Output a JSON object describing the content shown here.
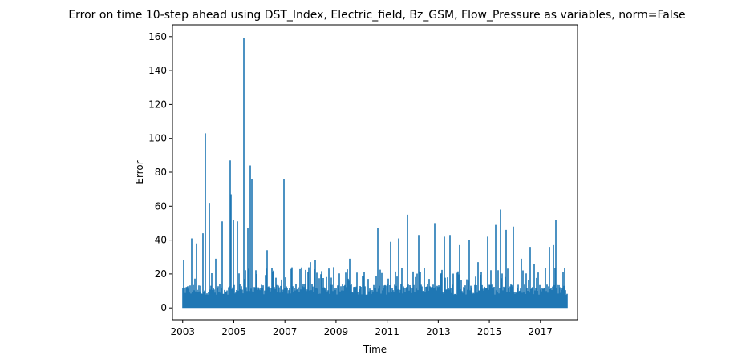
{
  "chart_data": {
    "type": "line",
    "title": "Error on time 10-step ahead using DST_Index, Electric_field, Bz_GSM, Flow_Pressure as variables, norm=False",
    "xlabel": "Time",
    "ylabel": "Error",
    "xlim": [
      2002.6,
      2018.45
    ],
    "ylim": [
      -7,
      167
    ],
    "x_ticks": [
      2003,
      2005,
      2007,
      2009,
      2011,
      2013,
      2015,
      2017
    ],
    "x_tick_labels": [
      "2003",
      "2005",
      "2007",
      "2009",
      "2011",
      "2013",
      "2015",
      "2017"
    ],
    "y_ticks": [
      0,
      20,
      40,
      60,
      80,
      100,
      120,
      140,
      160
    ],
    "y_tick_labels": [
      "0",
      "20",
      "40",
      "60",
      "80",
      "100",
      "120",
      "140",
      "160"
    ],
    "grid": false,
    "series": [
      {
        "color": "#1f77b4",
        "x_start": 2003.0,
        "x_end": 2018.05,
        "baseline_max": 14,
        "peaks": [
          {
            "x": 2003.05,
            "y": 28
          },
          {
            "x": 2003.35,
            "y": 41
          },
          {
            "x": 2003.55,
            "y": 38
          },
          {
            "x": 2003.8,
            "y": 44
          },
          {
            "x": 2003.9,
            "y": 103
          },
          {
            "x": 2004.05,
            "y": 62
          },
          {
            "x": 2004.3,
            "y": 29
          },
          {
            "x": 2004.55,
            "y": 51
          },
          {
            "x": 2004.85,
            "y": 87
          },
          {
            "x": 2004.9,
            "y": 67
          },
          {
            "x": 2005.0,
            "y": 52
          },
          {
            "x": 2005.15,
            "y": 51
          },
          {
            "x": 2005.38,
            "y": 159
          },
          {
            "x": 2005.55,
            "y": 47
          },
          {
            "x": 2005.65,
            "y": 84
          },
          {
            "x": 2005.72,
            "y": 76
          },
          {
            "x": 2006.3,
            "y": 34
          },
          {
            "x": 2006.55,
            "y": 22
          },
          {
            "x": 2006.95,
            "y": 76
          },
          {
            "x": 2007.25,
            "y": 23
          },
          {
            "x": 2007.65,
            "y": 21
          },
          {
            "x": 2008.0,
            "y": 27
          },
          {
            "x": 2008.2,
            "y": 28
          },
          {
            "x": 2008.9,
            "y": 24
          },
          {
            "x": 2009.55,
            "y": 29
          },
          {
            "x": 2010.1,
            "y": 21
          },
          {
            "x": 2010.65,
            "y": 47
          },
          {
            "x": 2011.15,
            "y": 39
          },
          {
            "x": 2011.45,
            "y": 41
          },
          {
            "x": 2011.8,
            "y": 55
          },
          {
            "x": 2012.25,
            "y": 43
          },
          {
            "x": 2012.85,
            "y": 50
          },
          {
            "x": 2013.25,
            "y": 42
          },
          {
            "x": 2013.45,
            "y": 43
          },
          {
            "x": 2013.85,
            "y": 37
          },
          {
            "x": 2014.2,
            "y": 40
          },
          {
            "x": 2014.55,
            "y": 27
          },
          {
            "x": 2014.95,
            "y": 42
          },
          {
            "x": 2015.25,
            "y": 49
          },
          {
            "x": 2015.45,
            "y": 58
          },
          {
            "x": 2015.65,
            "y": 46
          },
          {
            "x": 2015.95,
            "y": 48
          },
          {
            "x": 2016.25,
            "y": 29
          },
          {
            "x": 2016.6,
            "y": 36
          },
          {
            "x": 2016.75,
            "y": 26
          },
          {
            "x": 2017.35,
            "y": 36
          },
          {
            "x": 2017.5,
            "y": 37
          },
          {
            "x": 2017.6,
            "y": 52
          },
          {
            "x": 2017.9,
            "y": 21
          }
        ]
      }
    ]
  }
}
